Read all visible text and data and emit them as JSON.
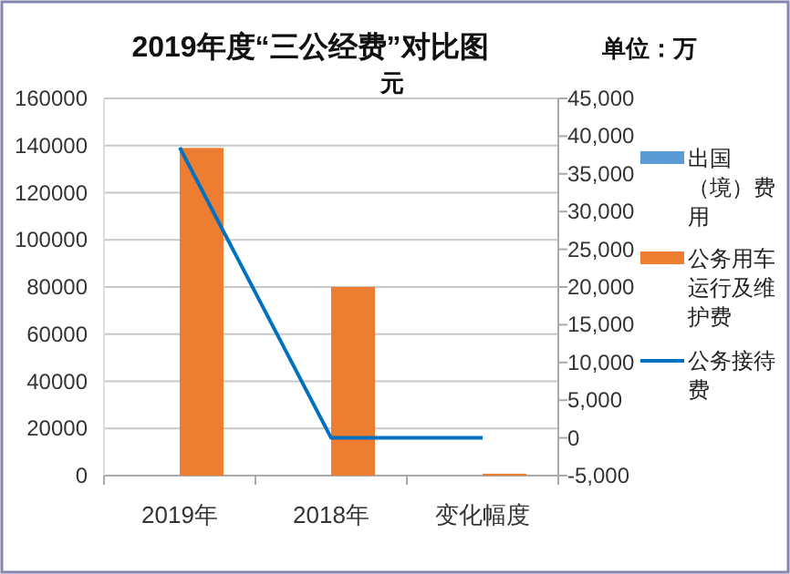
{
  "chart_data": {
    "type": "bar",
    "title": "2019年度“三公经费”对比图",
    "annotations": [
      "单位：万元"
    ],
    "categories": [
      "2019年",
      "2018年",
      "变化幅度"
    ],
    "series": [
      {
        "name": "出国（境）费用",
        "color": "#5b9bd5",
        "values": [
          0,
          0,
          0
        ]
      },
      {
        "name": "公务用车运行及维护费",
        "color": "#ed7d31",
        "values": [
          139000,
          80000,
          800
        ]
      },
      {
        "name": "公务接待费",
        "type": "line",
        "axis": "y2",
        "color": "#0070c0",
        "values": [
          38500,
          0,
          0
        ]
      }
    ],
    "ylim": [
      0,
      160000
    ],
    "yticks": [
      0,
      20000,
      40000,
      60000,
      80000,
      100000,
      120000,
      140000,
      160000
    ],
    "y2lim": [
      -5000,
      45000
    ],
    "y2ticks": [
      {
        "value": -5000,
        "label": "-5,000"
      },
      0,
      {
        "value": 5000,
        "label": "5,000"
      },
      {
        "value": 10000,
        "label": "10,000"
      },
      {
        "value": 15000,
        "label": "15,000"
      },
      {
        "value": 20000,
        "label": "20,000"
      },
      {
        "value": 25000,
        "label": "25,000"
      },
      {
        "value": 30000,
        "label": "30,000"
      },
      {
        "value": 35000,
        "label": "35,000"
      },
      {
        "value": 40000,
        "label": "40,000"
      },
      {
        "value": 45000,
        "label": "45,000"
      }
    ],
    "grid": "y",
    "legend": "right"
  }
}
